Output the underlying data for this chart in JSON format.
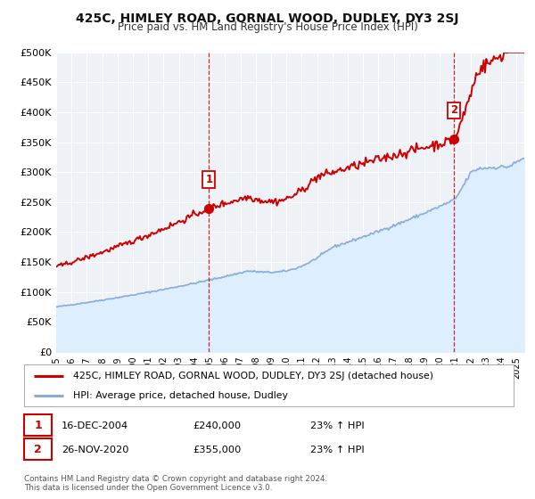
{
  "title": "425C, HIMLEY ROAD, GORNAL WOOD, DUDLEY, DY3 2SJ",
  "subtitle": "Price paid vs. HM Land Registry's House Price Index (HPI)",
  "xlim": [
    1995.0,
    2025.5
  ],
  "ylim": [
    0,
    500000
  ],
  "yticks": [
    0,
    50000,
    100000,
    150000,
    200000,
    250000,
    300000,
    350000,
    400000,
    450000,
    500000
  ],
  "ytick_labels": [
    "£0",
    "£50K",
    "£100K",
    "£150K",
    "£200K",
    "£250K",
    "£300K",
    "£350K",
    "£400K",
    "£450K",
    "£500K"
  ],
  "xticks": [
    1995,
    1996,
    1997,
    1998,
    1999,
    2000,
    2001,
    2002,
    2003,
    2004,
    2005,
    2006,
    2007,
    2008,
    2009,
    2010,
    2011,
    2012,
    2013,
    2014,
    2015,
    2016,
    2017,
    2018,
    2019,
    2020,
    2021,
    2022,
    2023,
    2024,
    2025
  ],
  "sale1_x": 2004.96,
  "sale1_y": 240000,
  "sale1_label": "1",
  "sale1_date": "16-DEC-2004",
  "sale1_price": "£240,000",
  "sale1_hpi": "23% ↑ HPI",
  "sale2_x": 2020.9,
  "sale2_y": 355000,
  "sale2_label": "2",
  "sale2_date": "26-NOV-2020",
  "sale2_price": "£355,000",
  "sale2_hpi": "23% ↑ HPI",
  "property_color": "#cc0000",
  "hpi_color": "#88aadd",
  "hpi_fill_color": "#ddeeff",
  "background_color": "#ffffff",
  "plot_bg_color": "#eef2f7",
  "grid_color": "#ffffff",
  "legend_label_property": "425C, HIMLEY ROAD, GORNAL WOOD, DUDLEY, DY3 2SJ (detached house)",
  "legend_label_hpi": "HPI: Average price, detached house, Dudley",
  "footer1": "Contains HM Land Registry data © Crown copyright and database right 2024.",
  "footer2": "This data is licensed under the Open Government Licence v3.0."
}
